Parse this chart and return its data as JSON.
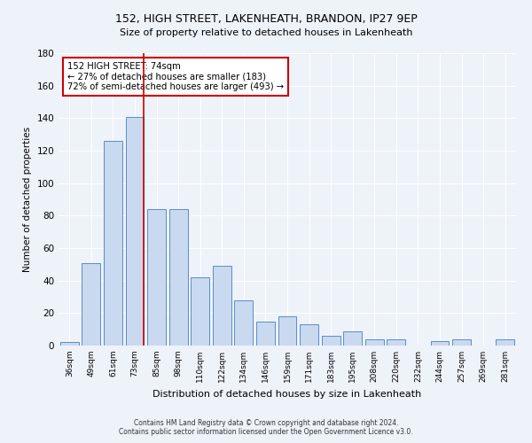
{
  "title1": "152, HIGH STREET, LAKENHEATH, BRANDON, IP27 9EP",
  "title2": "Size of property relative to detached houses in Lakenheath",
  "xlabel": "Distribution of detached houses by size in Lakenheath",
  "ylabel": "Number of detached properties",
  "categories": [
    "36sqm",
    "49sqm",
    "61sqm",
    "73sqm",
    "85sqm",
    "98sqm",
    "110sqm",
    "122sqm",
    "134sqm",
    "146sqm",
    "159sqm",
    "171sqm",
    "183sqm",
    "195sqm",
    "208sqm",
    "220sqm",
    "232sqm",
    "244sqm",
    "257sqm",
    "269sqm",
    "281sqm"
  ],
  "values": [
    2,
    51,
    126,
    141,
    84,
    84,
    42,
    49,
    28,
    15,
    18,
    13,
    6,
    9,
    4,
    4,
    0,
    3,
    4,
    0,
    4
  ],
  "bar_color": "#c9d9ef",
  "bar_edge_color": "#5b8dc8",
  "annotation_line1": "152 HIGH STREET: 74sqm",
  "annotation_line2": "← 27% of detached houses are smaller (183)",
  "annotation_line3": "72% of semi-detached houses are larger (493) →",
  "annotation_box_color": "#ffffff",
  "annotation_box_edge": "#cc0000",
  "ylim": [
    0,
    180
  ],
  "yticks": [
    0,
    20,
    40,
    60,
    80,
    100,
    120,
    140,
    160,
    180
  ],
  "footer1": "Contains HM Land Registry data © Crown copyright and database right 2024.",
  "footer2": "Contains public sector information licensed under the Open Government Licence v3.0.",
  "bg_color": "#eef2f9",
  "plot_bg_color": "#eef2f9",
  "red_line_index": 3
}
